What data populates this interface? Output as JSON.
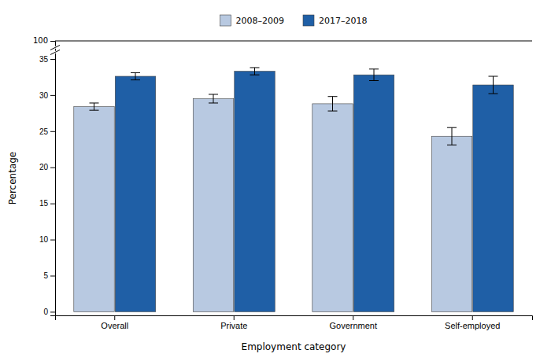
{
  "chart_data": {
    "type": "bar",
    "xlabel": "Employment category",
    "ylabel": "Percentage",
    "categories": [
      "Overall",
      "Private",
      "Government",
      "Self-employed"
    ],
    "series": [
      {
        "name": "2008–2009",
        "color": "#b8c9e1",
        "values": [
          28.4,
          29.5,
          28.8,
          24.3
        ],
        "errors": [
          0.5,
          0.6,
          1.0,
          1.2
        ]
      },
      {
        "name": "2017–2018",
        "color": "#1f5fa6",
        "values": [
          32.6,
          33.3,
          32.8,
          31.4
        ],
        "errors": [
          0.5,
          0.5,
          0.8,
          1.2
        ]
      }
    ],
    "ylim": [
      -0.5,
      37.5
    ],
    "yticks": [
      0,
      5,
      10,
      15,
      20,
      25,
      30,
      35
    ],
    "annotations": [
      "100"
    ],
    "grid": false,
    "legend": "top"
  }
}
